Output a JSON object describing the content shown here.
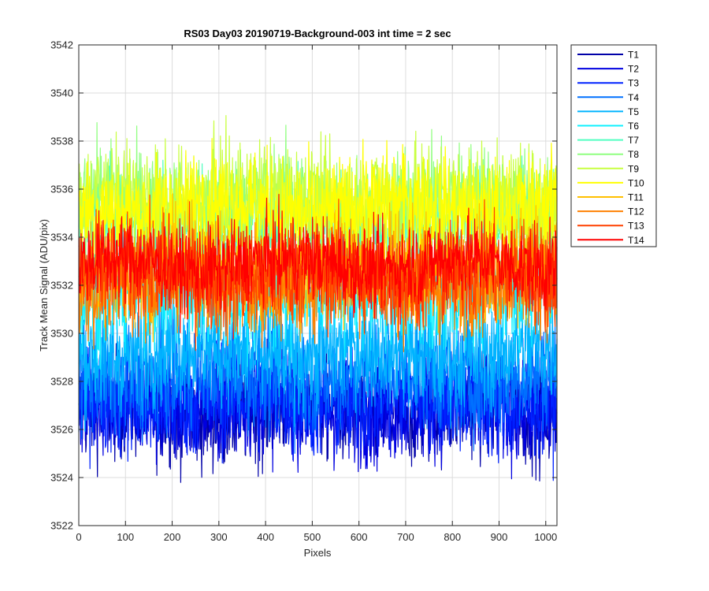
{
  "chart_data": {
    "type": "line",
    "title": "RS03 Day03 20190719-Background-003 int time = 2 sec",
    "xlabel": "Pixels",
    "ylabel": "Track Mean Signal (ADU/pix)",
    "xlim": [
      0,
      1024
    ],
    "ylim": [
      3522,
      3542
    ],
    "xticks": [
      0,
      100,
      200,
      300,
      400,
      500,
      600,
      700,
      800,
      900,
      1000
    ],
    "yticks": [
      3522,
      3524,
      3526,
      3528,
      3530,
      3532,
      3534,
      3536,
      3538,
      3540,
      3542
    ],
    "grid": true,
    "legend_position": "outside-top-right",
    "n_points": 1024,
    "series": [
      {
        "name": "T1",
        "color": "#0000a8",
        "mean": 3526.8,
        "amplitude": 1.5
      },
      {
        "name": "T2",
        "color": "#0000e0",
        "mean": 3526.9,
        "amplitude": 1.5
      },
      {
        "name": "T3",
        "color": "#0022ff",
        "mean": 3527.2,
        "amplitude": 1.5
      },
      {
        "name": "T4",
        "color": "#0070ff",
        "mean": 3528.2,
        "amplitude": 1.5
      },
      {
        "name": "T5",
        "color": "#00b4ff",
        "mean": 3529.2,
        "amplitude": 1.5
      },
      {
        "name": "T6",
        "color": "#10f0ff",
        "mean": 3531.6,
        "amplitude": 1.5
      },
      {
        "name": "T7",
        "color": "#50ffc0",
        "mean": 3534.6,
        "amplitude": 1.5
      },
      {
        "name": "T8",
        "color": "#90ff80",
        "mean": 3535.4,
        "amplitude": 1.5
      },
      {
        "name": "T9",
        "color": "#c8ff40",
        "mean": 3535.6,
        "amplitude": 1.5
      },
      {
        "name": "T10",
        "color": "#ffff00",
        "mean": 3535.2,
        "amplitude": 1.5
      },
      {
        "name": "T11",
        "color": "#ffc000",
        "mean": 3532.6,
        "amplitude": 1.5
      },
      {
        "name": "T12",
        "color": "#ff8000",
        "mean": 3532.2,
        "amplitude": 1.5
      },
      {
        "name": "T13",
        "color": "#ff4000",
        "mean": 3532.4,
        "amplitude": 1.5
      },
      {
        "name": "T14",
        "color": "#ff0000",
        "mean": 3532.9,
        "amplitude": 1.2
      }
    ]
  }
}
